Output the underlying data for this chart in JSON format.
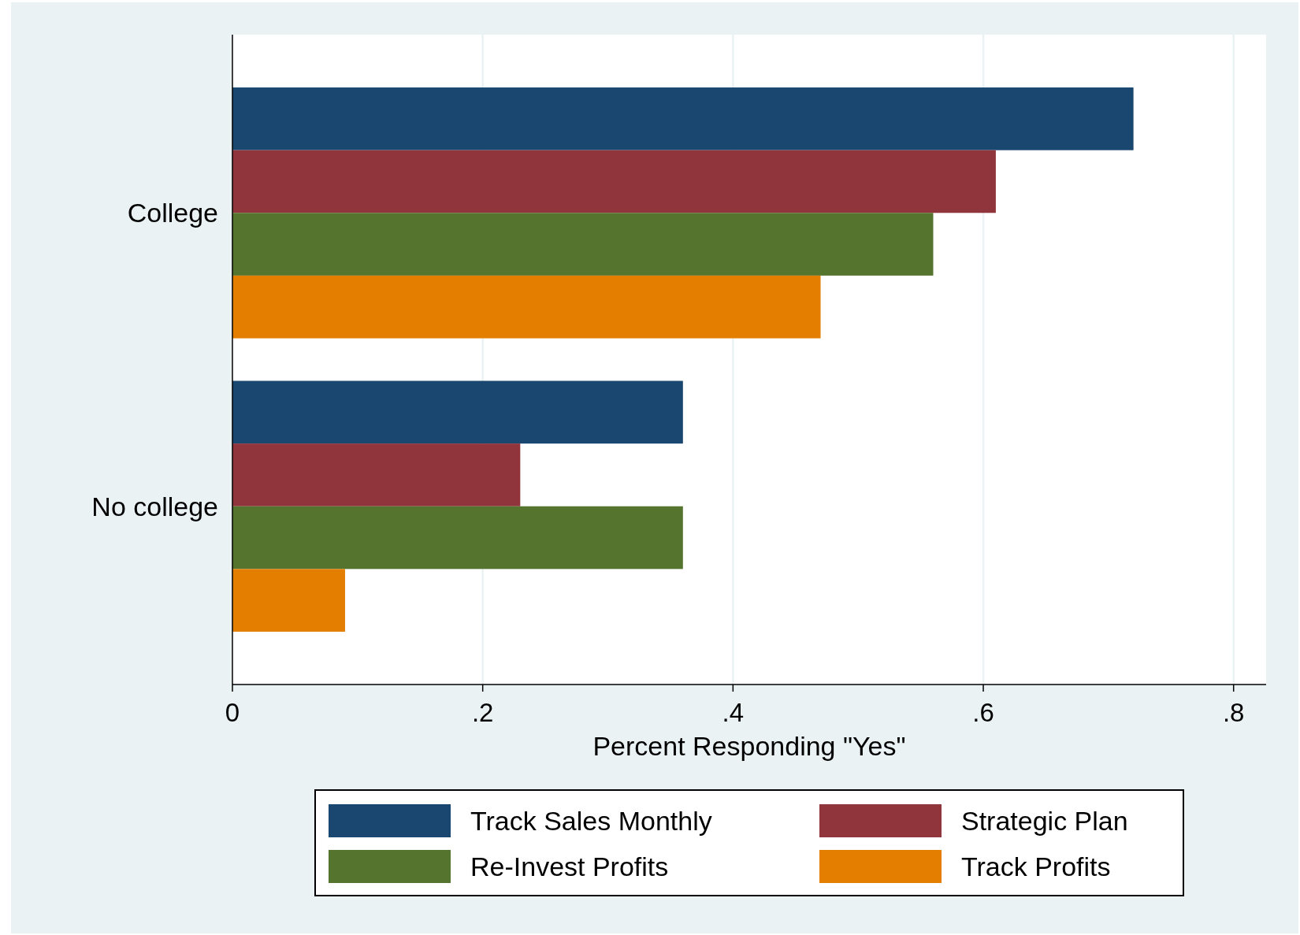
{
  "chart_data": {
    "type": "bar",
    "orientation": "horizontal",
    "categories": [
      "College",
      "No college"
    ],
    "series": [
      {
        "name": "Track Sales Monthly",
        "color": "#1a476f",
        "values": [
          0.72,
          0.36
        ]
      },
      {
        "name": "Strategic Plan",
        "color": "#90353b",
        "values": [
          0.61,
          0.23
        ]
      },
      {
        "name": "Re-Invest Profits",
        "color": "#55752f",
        "values": [
          0.56,
          0.36
        ]
      },
      {
        "name": "Track Profits",
        "color": "#e37e00",
        "values": [
          0.47,
          0.09
        ]
      }
    ],
    "xlabel": "Percent Responding \"Yes\"",
    "xlim": [
      0,
      0.826
    ],
    "xticks": [
      0,
      {
        "value": 0.2,
        "label": ".2"
      },
      {
        "value": 0.4,
        "label": ".4"
      },
      {
        "value": 0.6,
        "label": ".6"
      },
      {
        "value": 0.8,
        "label": ".8"
      }
    ],
    "grid": "x",
    "legend": "bottom"
  }
}
